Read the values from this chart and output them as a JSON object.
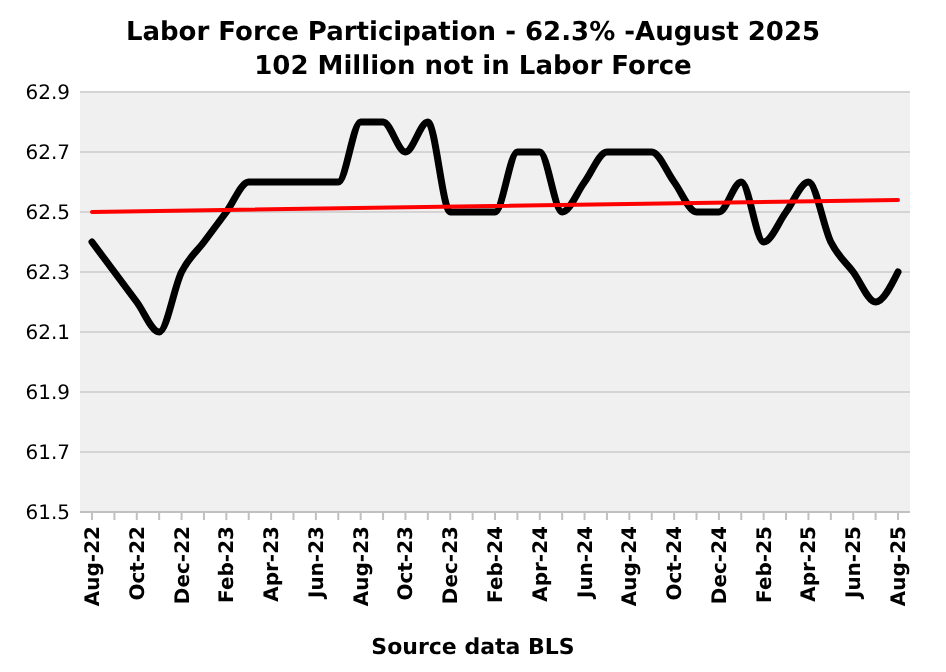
{
  "chart_data": {
    "type": "line",
    "title": "Labor Force Participation - 62.3% -August 2025",
    "subtitle": "102 Million not in Labor Force",
    "categories": [
      "Aug-22",
      null,
      "Oct-22",
      null,
      "Dec-22",
      null,
      "Feb-23",
      null,
      "Apr-23",
      null,
      "Jun-23",
      null,
      "Aug-23",
      null,
      "Oct-23",
      null,
      "Dec-23",
      null,
      "Feb-24",
      null,
      "Apr-24",
      null,
      "Jun-24",
      null,
      "Aug-24",
      null,
      "Oct-24",
      null,
      "Dec-24",
      null,
      "Feb-25",
      null,
      "Apr-25",
      null,
      "Jun-25",
      null,
      "Aug-25"
    ],
    "series": [
      {
        "color": "#000000",
        "values": [
          62.4,
          62.3,
          62.2,
          62.1,
          62.3,
          62.4,
          62.5,
          62.6,
          62.6,
          62.6,
          62.6,
          62.6,
          62.8,
          62.8,
          62.7,
          62.8,
          62.5,
          62.5,
          62.5,
          62.7,
          62.7,
          62.5,
          62.6,
          62.7,
          62.7,
          62.7,
          62.6,
          62.5,
          62.5,
          62.6,
          62.4,
          62.5,
          62.6,
          62.4,
          62.3,
          62.2,
          62.3
        ]
      },
      {
        "type": "line",
        "color": "#ff0000",
        "x": [
          "Aug-22",
          "Aug-25"
        ],
        "values": [
          62.5,
          62.54
        ]
      }
    ],
    "ylim": [
      61.5,
      62.9
    ],
    "yticks": [
      61.5,
      61.7,
      61.9,
      62.1,
      62.3,
      62.5,
      62.7,
      62.9
    ],
    "grid": "y",
    "marker": "none",
    "line_style": "solid",
    "annotations": [
      "Source data BLS"
    ]
  }
}
